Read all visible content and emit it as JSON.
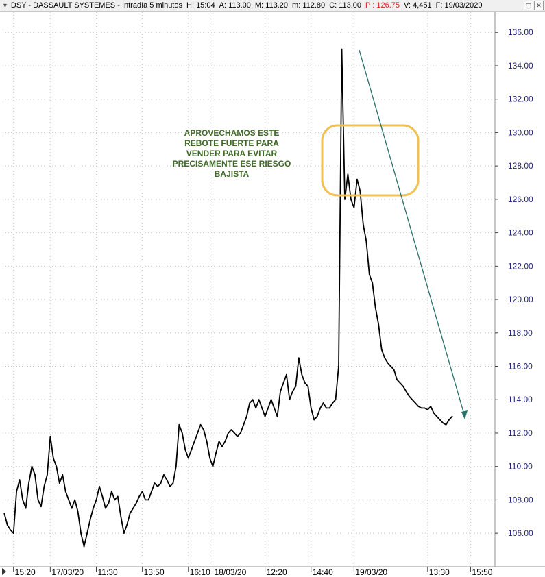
{
  "header": {
    "symbol": "DSY",
    "name": "DASSAULT SYSTEMES",
    "interval": "Intradía 5 minutos",
    "h_label": "H:",
    "h_value": "15:04",
    "a_label": "A:",
    "a_value": "113.00",
    "m_label": "M:",
    "m_value": "113.20",
    "min_label": "m:",
    "min_value": "112.80",
    "c_label": "C:",
    "c_value": "113.00",
    "p_label": "P :",
    "p_value": "126.75",
    "v_label": "V:",
    "v_value": "4,451",
    "f_label": "F:",
    "f_value": "19/03/2020"
  },
  "window_buttons": {
    "restore": "▢",
    "close": "✕"
  },
  "colors": {
    "price": "#000000",
    "y_tick_text": "#23237a",
    "grid": "#c8c8c8",
    "annotation_text": "#3f6a26",
    "highlight_box": "#f0c050",
    "trend_arrow": "#2a6f6a",
    "p_value": "#d21e1e"
  },
  "annotation": {
    "lines": [
      "APROVECHAMOS ESTE",
      "REBOTE FUERTE PARA",
      "VENDER PARA EVITAR",
      "PRECISAMENTE ESE RIESGO",
      "BAJISTA"
    ]
  },
  "chart_data": {
    "type": "line",
    "title": "",
    "xlabel": "",
    "ylabel": "",
    "ylim": [
      104.2,
      137.2
    ],
    "yticks": [
      106,
      108,
      110,
      112,
      114,
      116,
      118,
      120,
      122,
      124,
      126,
      128,
      130,
      132,
      134,
      136
    ],
    "ytick_labels": [
      "106.00",
      "108.00",
      "110.00",
      "112.00",
      "114.00",
      "116.00",
      "118.00",
      "120.00",
      "122.00",
      "124.00",
      "126.00",
      "128.00",
      "130.00",
      "132.00",
      "134.00",
      "136.00"
    ],
    "xtick_labels": [
      "15:20",
      "17/03/20",
      "11:30",
      "13:50",
      "16:10",
      "18/03/20",
      "12:20",
      "14:40",
      "19/03/20",
      "13:30",
      "15:50"
    ],
    "xtick_bar_index": [
      3,
      15,
      30,
      45,
      60,
      68,
      85,
      100,
      114,
      138,
      152
    ],
    "x_bar_count": 160,
    "grid": true,
    "series": [
      {
        "values": [
          107.2,
          106.5,
          106.2,
          106.0,
          108.5,
          109.2,
          108.0,
          107.5,
          109.0,
          110.0,
          109.5,
          108.0,
          107.6,
          108.8,
          109.5,
          111.8,
          110.5,
          110.0,
          109.0,
          109.5,
          108.5,
          108.0,
          107.5,
          108.0,
          107.3,
          106.0,
          105.2,
          106.0,
          106.8,
          107.5,
          108.0,
          108.8,
          108.2,
          107.5,
          107.8,
          108.5,
          108.0,
          108.2,
          107.0,
          106.0,
          106.5,
          107.2,
          107.5,
          107.8,
          108.2,
          108.5,
          108.0,
          108.0,
          108.5,
          109.0,
          108.8,
          109.0,
          109.5,
          109.2,
          108.8,
          109.0,
          110.0,
          112.5,
          112.0,
          111.0,
          110.5,
          111.0,
          111.5,
          112.0,
          112.5,
          112.2,
          111.5,
          110.5,
          110.0,
          110.8,
          111.5,
          111.2,
          111.5,
          112.0,
          112.2,
          112.0,
          111.8,
          112.0,
          112.5,
          113.0,
          113.8,
          114.0,
          113.5,
          114.0,
          113.5,
          113.0,
          113.5,
          114.0,
          113.5,
          113.0,
          114.5,
          115.0,
          115.5,
          114.0,
          114.5,
          114.8,
          116.5,
          115.5,
          115.0,
          114.8,
          113.5,
          112.8,
          113.0,
          113.5,
          113.8,
          113.5,
          113.5,
          113.8,
          114.0,
          116.0,
          135.0,
          126.0,
          127.5,
          126.0,
          125.5,
          127.2,
          126.5,
          124.5,
          123.5,
          121.5,
          121.0,
          119.5,
          118.5,
          117.0,
          116.5,
          116.2,
          116.0,
          115.8,
          115.2,
          115.0,
          114.8,
          114.5,
          114.2,
          114.0,
          113.8,
          113.6,
          113.5,
          113.5,
          113.4,
          113.6,
          113.2,
          113.0,
          112.8,
          112.6,
          112.5,
          112.8,
          113.0
        ]
      }
    ]
  }
}
